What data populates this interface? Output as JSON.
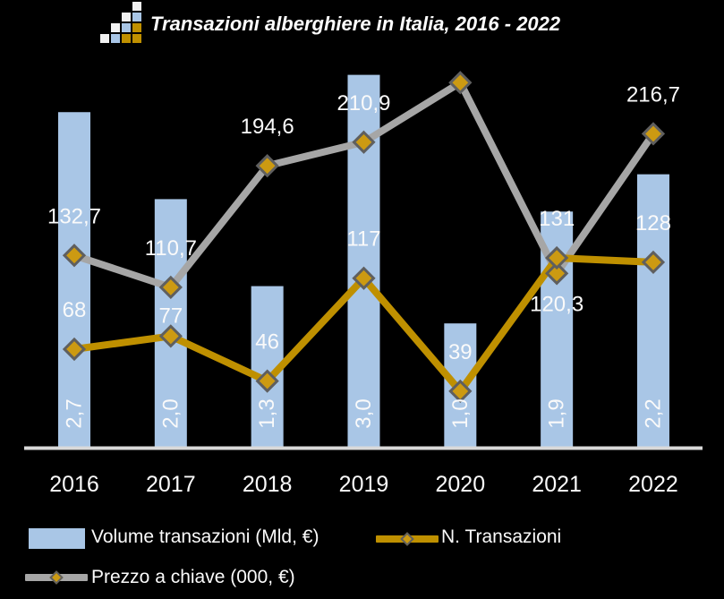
{
  "header": {
    "title": "Transazioni alberghiere in Italia, 2016 - 2022"
  },
  "colors": {
    "background": "#000000",
    "bar": "#a9c6e6",
    "gold_line": "#bf9000",
    "gray_line": "#a6a6a6",
    "marker_fill": "#cc9a12",
    "marker_stroke": "#5f5f5f",
    "axis": "#d9d9d9",
    "label_text": "#fafafa"
  },
  "chart_data": {
    "type": "bar",
    "subtype": "combo-bar-and-lines",
    "title": "Transazioni alberghiere in Italia, 2016 - 2022",
    "categories": [
      "2016",
      "2017",
      "2018",
      "2019",
      "2020",
      "2021",
      "2022"
    ],
    "series": [
      {
        "name": "Volume transazioni (Mld, €)",
        "type": "bar",
        "values": [
          2.7,
          2.0,
          1.3,
          3.0,
          1.0,
          1.9,
          2.2
        ],
        "labels": [
          "2,7",
          "2,0",
          "1,3",
          "3,0",
          "1,0",
          "1,9",
          "2,2"
        ]
      },
      {
        "name": "N. Transazioni",
        "type": "line",
        "values": [
          68,
          77,
          46,
          117,
          39,
          131,
          128
        ],
        "labels": [
          "68",
          "77",
          "46",
          "117",
          "39",
          "131",
          "128"
        ]
      },
      {
        "name": "Prezzo a chiave (000, €)",
        "type": "line",
        "values": [
          132.7,
          110.7,
          194.6,
          210.9,
          252,
          120.3,
          216.7
        ],
        "labels": [
          "132,7",
          "110,7",
          "194,6",
          "210,9",
          "",
          "120,3",
          "216,7"
        ],
        "note": "2020 point has no visible data label; value ~252 estimated from marker position"
      }
    ],
    "axes": {
      "x_labels": [
        "2016",
        "2017",
        "2018",
        "2019",
        "2020",
        "2021",
        "2022"
      ],
      "bar_axis_range": [
        0,
        3.6
      ],
      "line_axis_range": [
        0,
        310
      ],
      "y_axis_visible": false,
      "gridlines": false
    },
    "legend_position": "bottom",
    "background": "#000000"
  },
  "legend": {
    "items": [
      {
        "label": "Volume transazioni (Mld, €)",
        "swatch": "bar"
      },
      {
        "label": "N. Transazioni",
        "swatch": "gold-line"
      },
      {
        "label": "Prezzo a chiave (000, €)",
        "swatch": "gray-line"
      }
    ]
  }
}
